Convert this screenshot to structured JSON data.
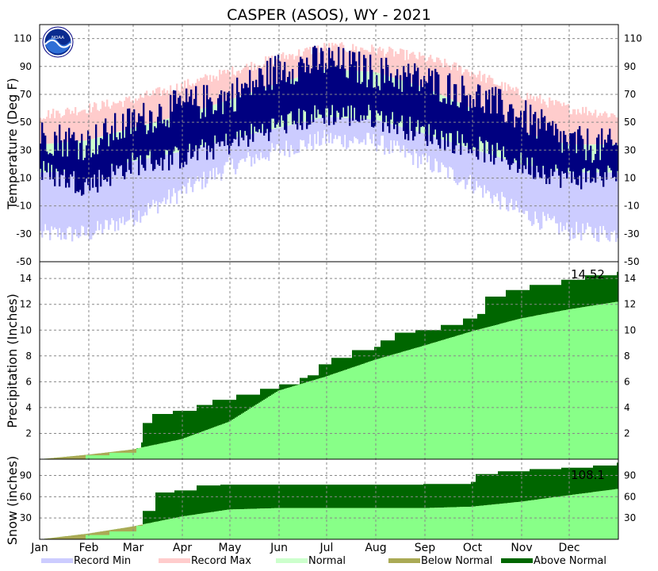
{
  "chart_data": {
    "type": "climate-summary",
    "title": "CASPER (ASOS), WY - 2021",
    "months": [
      "Jan",
      "Feb",
      "Mar",
      "Apr",
      "May",
      "Jun",
      "Jul",
      "Aug",
      "Sep",
      "Oct",
      "Nov",
      "Dec"
    ],
    "logo_text": "NOAA",
    "colors": {
      "record_min": "#ccccff",
      "record_max": "#ffcccc",
      "normal": "#ccffcc",
      "observed": "#000080",
      "below_normal": "#aaaa55",
      "above_normal": "#006600",
      "normal_precip": "#88ff88",
      "grid": "#888888"
    },
    "legend": [
      "Record Min",
      "Record Max",
      "Normal",
      "Below Normal",
      "Above Normal"
    ],
    "temperature": {
      "ylabel": "Temperature (Deg F)",
      "ylim": [
        -50,
        120
      ],
      "ticks": [
        110,
        90,
        70,
        50,
        30,
        10,
        -10,
        -30,
        -50
      ],
      "profiles": {
        "record_max_day": [
          1,
          31,
          59,
          90,
          120,
          151,
          181,
          212,
          243,
          273,
          304,
          334,
          365
        ],
        "record_max": [
          55,
          60,
          66,
          76,
          86,
          96,
          104,
          102,
          96,
          86,
          70,
          60,
          55
        ],
        "normal_max": [
          34,
          37,
          46,
          55,
          66,
          78,
          88,
          86,
          75,
          60,
          43,
          34,
          34
        ],
        "normal_min": [
          14,
          15,
          22,
          29,
          38,
          46,
          54,
          52,
          42,
          31,
          20,
          14,
          14
        ],
        "record_min": [
          -30,
          -30,
          -18,
          0,
          18,
          30,
          38,
          36,
          22,
          6,
          -15,
          -28,
          -30
        ],
        "obs_high": [
          40,
          35,
          50,
          62,
          68,
          88,
          94,
          86,
          80,
          70,
          55,
          35,
          32
        ],
        "obs_low": [
          15,
          5,
          20,
          25,
          35,
          48,
          56,
          54,
          42,
          33,
          20,
          10,
          12
        ]
      }
    },
    "precipitation": {
      "ylabel": "Precipitation (Inches)",
      "ylim": [
        0,
        15.3
      ],
      "ticks": [
        2,
        4,
        6,
        8,
        10,
        12,
        14
      ],
      "total_label": "14.52",
      "normal_cum": [
        [
          1,
          0
        ],
        [
          31,
          0.35
        ],
        [
          59,
          0.75
        ],
        [
          90,
          1.55
        ],
        [
          120,
          2.9
        ],
        [
          151,
          5.3
        ],
        [
          181,
          6.4
        ],
        [
          212,
          7.7
        ],
        [
          243,
          8.8
        ],
        [
          273,
          9.9
        ],
        [
          304,
          10.9
        ],
        [
          334,
          11.6
        ],
        [
          365,
          12.2
        ]
      ],
      "observed_cum": [
        [
          1,
          0
        ],
        [
          30,
          0.3
        ],
        [
          45,
          0.5
        ],
        [
          62,
          0.85
        ],
        [
          65,
          1.3
        ],
        [
          66,
          2.8
        ],
        [
          72,
          3.5
        ],
        [
          85,
          3.75
        ],
        [
          100,
          4.2
        ],
        [
          110,
          4.6
        ],
        [
          125,
          5.0
        ],
        [
          140,
          5.45
        ],
        [
          152,
          5.8
        ],
        [
          165,
          6.3
        ],
        [
          170,
          6.5
        ],
        [
          177,
          7.35
        ],
        [
          185,
          7.85
        ],
        [
          198,
          8.45
        ],
        [
          212,
          8.7
        ],
        [
          216,
          9.2
        ],
        [
          225,
          9.8
        ],
        [
          238,
          10.0
        ],
        [
          254,
          10.4
        ],
        [
          268,
          10.9
        ],
        [
          277,
          11.25
        ],
        [
          282,
          12.6
        ],
        [
          295,
          13.1
        ],
        [
          310,
          13.5
        ],
        [
          330,
          13.9
        ],
        [
          345,
          14.25
        ],
        [
          365,
          14.52
        ]
      ]
    },
    "snow": {
      "ylabel": "Snow (inches)",
      "ylim": [
        0,
        113
      ],
      "ticks": [
        30,
        60,
        90
      ],
      "total_label": "108.1",
      "normal_cum": [
        [
          1,
          0
        ],
        [
          31,
          8
        ],
        [
          59,
          18
        ],
        [
          90,
          32
        ],
        [
          120,
          42
        ],
        [
          151,
          44
        ],
        [
          181,
          44
        ],
        [
          212,
          44
        ],
        [
          243,
          44
        ],
        [
          273,
          46
        ],
        [
          304,
          53
        ],
        [
          334,
          62
        ],
        [
          365,
          71
        ]
      ],
      "observed_cum": [
        [
          1,
          0
        ],
        [
          30,
          6
        ],
        [
          45,
          11
        ],
        [
          62,
          19
        ],
        [
          66,
          40
        ],
        [
          74,
          66
        ],
        [
          86,
          69
        ],
        [
          100,
          76
        ],
        [
          115,
          77
        ],
        [
          150,
          77
        ],
        [
          181,
          77
        ],
        [
          212,
          77
        ],
        [
          243,
          78
        ],
        [
          273,
          81
        ],
        [
          276,
          92
        ],
        [
          290,
          96
        ],
        [
          310,
          99
        ],
        [
          330,
          101
        ],
        [
          350,
          104
        ],
        [
          365,
          108.1
        ]
      ]
    }
  }
}
